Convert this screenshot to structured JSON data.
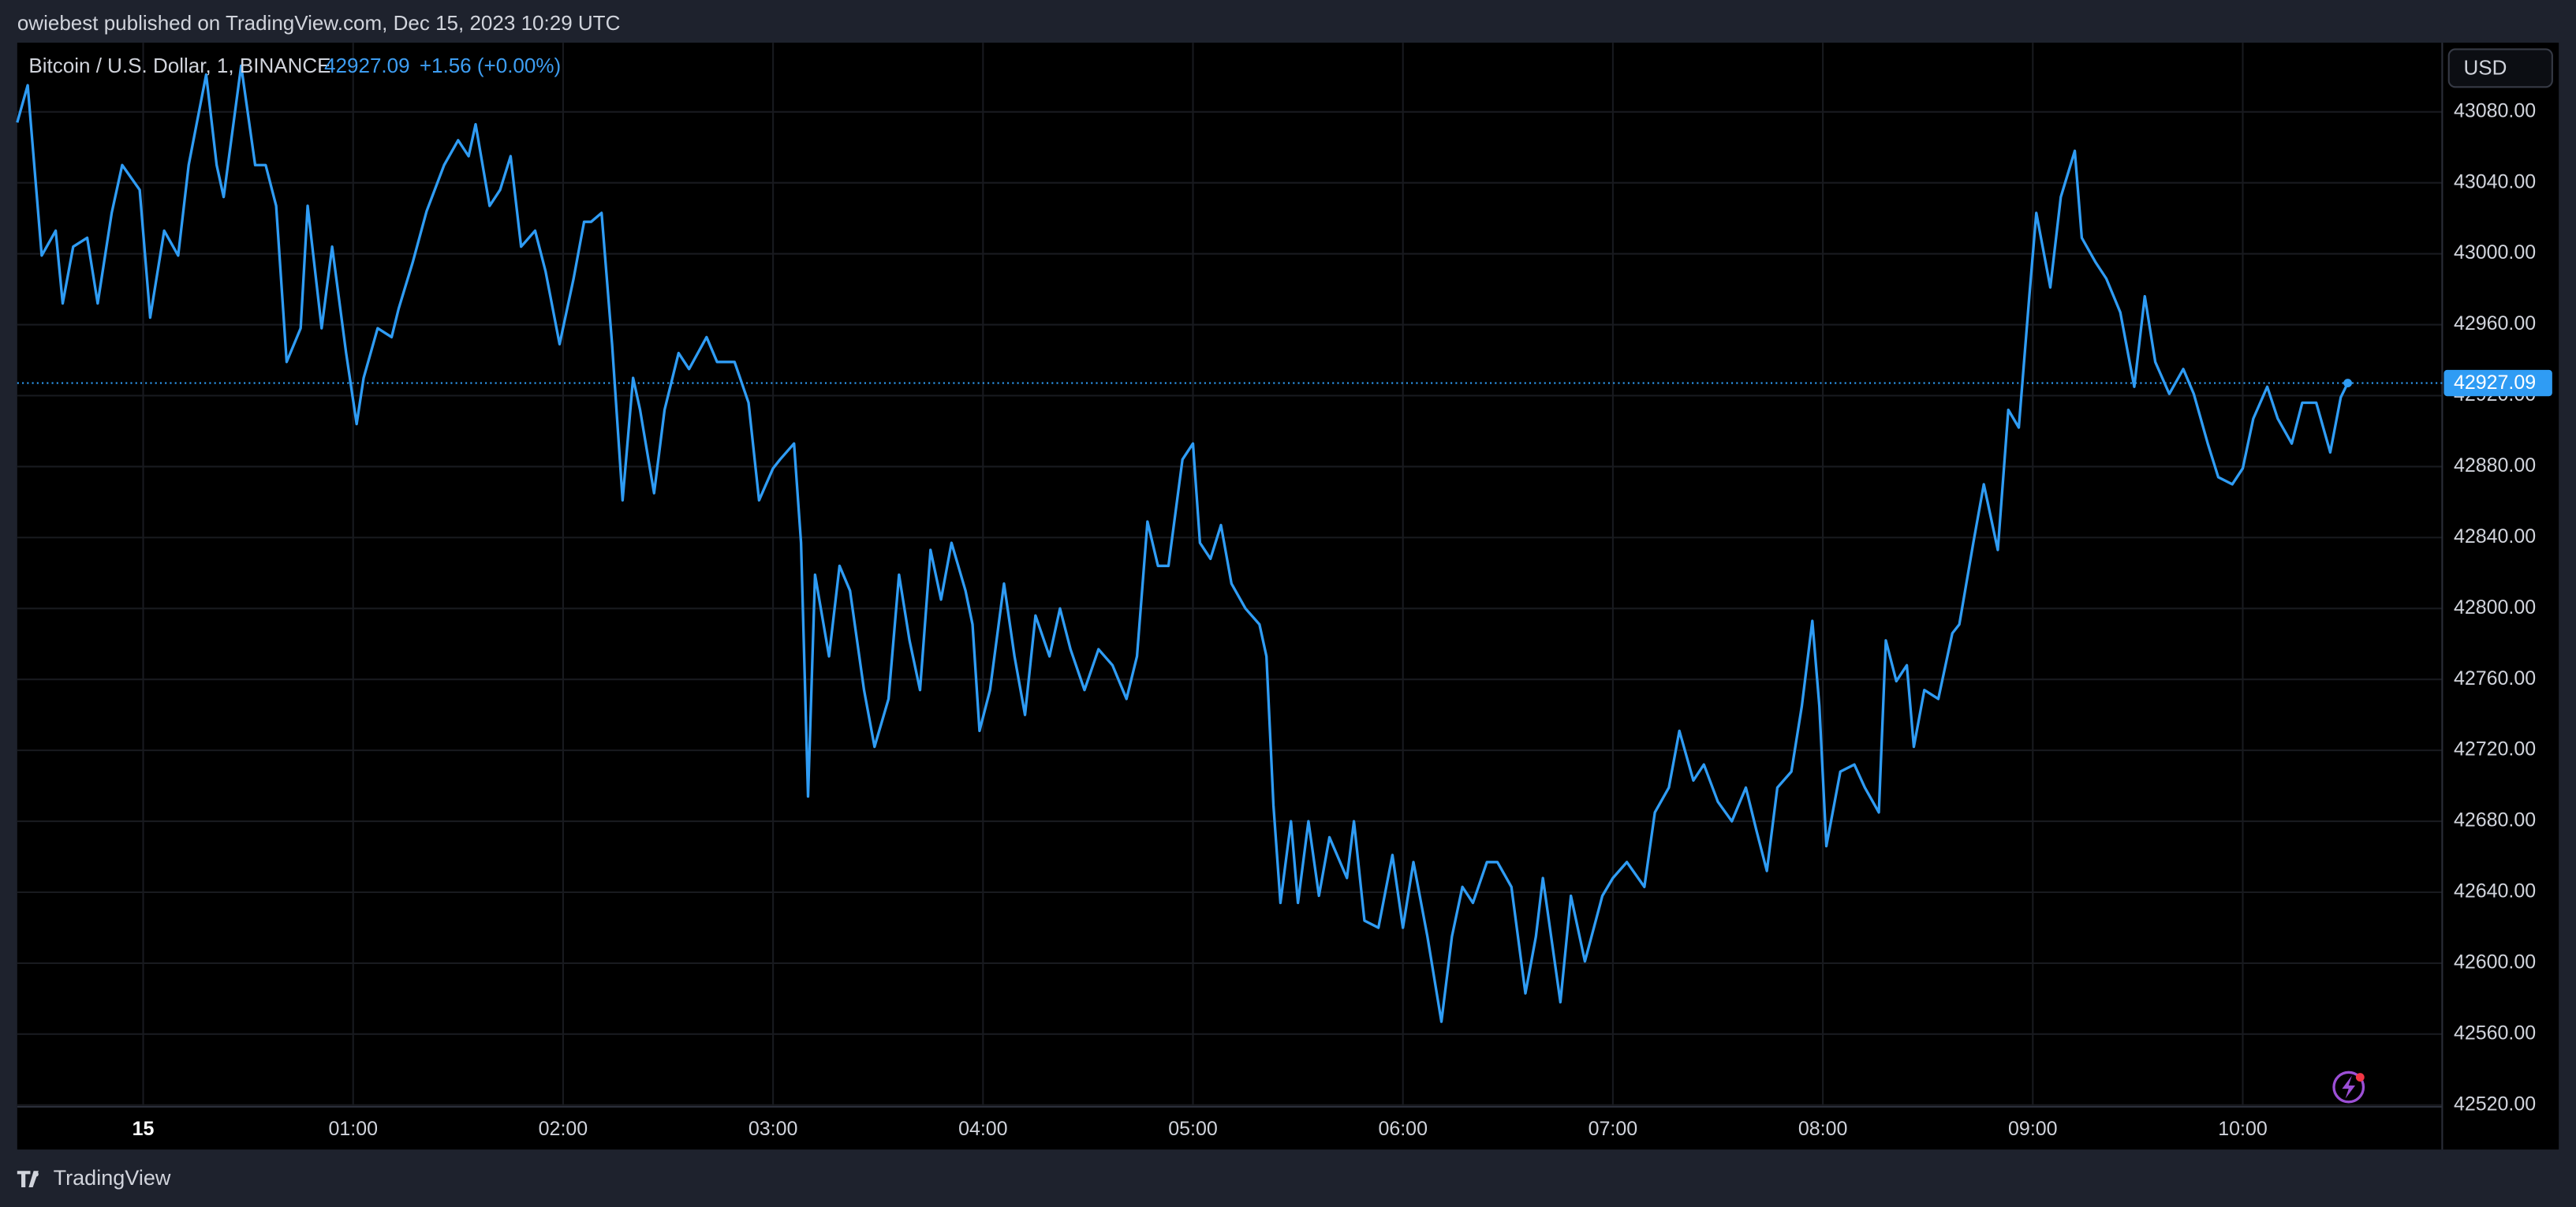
{
  "header": "owiebest published on TradingView.com, Dec 15, 2023 10:29 UTC",
  "footer": "TradingView",
  "chart_data": {
    "type": "line",
    "title": "Bitcoin / U.S. Dollar, 1, BINANCE",
    "change": "+1.56 (+0.00%)",
    "currency": "USD",
    "color": "#2f9cf4",
    "grid": true,
    "xlim": [
      -36,
      657
    ],
    "xticks": [
      {
        "value": 0,
        "label": "15"
      },
      {
        "value": 60,
        "label": "01:00"
      },
      {
        "value": 120,
        "label": "02:00"
      },
      {
        "value": 180,
        "label": "03:00"
      },
      {
        "value": 240,
        "label": "04:00"
      },
      {
        "value": 300,
        "label": "05:00"
      },
      {
        "value": 360,
        "label": "06:00"
      },
      {
        "value": 420,
        "label": "07:00"
      },
      {
        "value": 480,
        "label": "08:00"
      },
      {
        "value": 540,
        "label": "09:00"
      },
      {
        "value": 600,
        "label": "10:00"
      }
    ],
    "ylim": [
      42519,
      43119
    ],
    "yticks": [
      {
        "value": 42520,
        "label": "42520.00"
      },
      {
        "value": 42560,
        "label": "42560.00"
      },
      {
        "value": 42600,
        "label": "42600.00"
      },
      {
        "value": 42640,
        "label": "42640.00"
      },
      {
        "value": 42680,
        "label": "42680.00"
      },
      {
        "value": 42720,
        "label": "42720.00"
      },
      {
        "value": 42760,
        "label": "42760.00"
      },
      {
        "value": 42800,
        "label": "42800.00"
      },
      {
        "value": 42840,
        "label": "42840.00"
      },
      {
        "value": 42880,
        "label": "42880.00"
      },
      {
        "value": 42920,
        "label": "42920.00"
      },
      {
        "value": 42960,
        "label": "42960.00"
      },
      {
        "value": 43000,
        "label": "43000.00"
      },
      {
        "value": 43040,
        "label": "43040.00"
      },
      {
        "value": 43080,
        "label": "43080.00"
      }
    ],
    "x": [
      -36,
      -33,
      -29,
      -25,
      -23,
      -20,
      -16,
      -13,
      -9,
      -6,
      -1,
      2,
      6,
      10,
      13,
      18,
      21,
      23,
      28,
      32,
      35,
      38,
      41,
      45,
      47,
      51,
      54,
      58,
      61,
      63,
      67,
      71,
      73,
      77,
      81,
      86,
      90,
      93,
      95,
      99,
      102,
      105,
      108,
      112,
      115,
      119,
      123,
      126,
      128,
      131,
      134,
      137,
      140,
      142,
      146,
      149,
      153,
      156,
      161,
      164,
      169,
      173,
      176,
      180,
      182,
      186,
      188,
      190,
      192,
      196,
      199,
      202,
      206,
      209,
      213,
      216,
      219,
      222,
      225,
      228,
      231,
      235,
      237,
      239,
      242,
      246,
      249,
      252,
      255,
      259,
      262,
      265,
      269,
      273,
      277,
      281,
      284,
      287,
      290,
      293,
      297,
      300,
      302,
      305,
      308,
      311,
      315,
      319,
      321,
      323,
      325,
      328,
      330,
      333,
      336,
      339,
      344,
      346,
      349,
      353,
      357,
      360,
      363,
      367,
      371,
      374,
      377,
      380,
      384,
      387,
      391,
      395,
      398,
      400,
      405,
      408,
      412,
      417,
      420,
      424,
      429,
      432,
      436,
      439,
      443,
      446,
      450,
      454,
      458,
      461,
      464,
      467,
      471,
      474,
      477,
      479,
      481,
      485,
      489,
      492,
      496,
      498,
      501,
      504,
      506,
      509,
      513,
      517,
      519,
      523,
      526,
      530,
      533,
      536,
      539,
      541,
      545,
      548,
      552,
      554,
      558,
      561,
      565,
      569,
      572,
      575,
      579,
      583,
      586,
      590,
      593,
      597,
      600,
      603,
      607,
      610,
      614,
      617,
      621,
      625,
      628,
      630
    ],
    "values": [
      43074,
      43095,
      42999,
      43013,
      42972,
      43004,
      43009,
      42972,
      43023,
      43050,
      43036,
      42964,
      43013,
      42999,
      43050,
      43101,
      43050,
      43032,
      43106,
      43050,
      43050,
      43027,
      42939,
      42958,
      43027,
      42958,
      43004,
      42944,
      42904,
      42930,
      42958,
      42953,
      42969,
      42995,
      43024,
      43050,
      43064,
      43055,
      43073,
      43027,
      43036,
      43055,
      43004,
      43013,
      42990,
      42949,
      42986,
      43018,
      43018,
      43023,
      42949,
      42861,
      42930,
      42912,
      42865,
      42912,
      42944,
      42935,
      42953,
      42939,
      42939,
      42916,
      42861,
      42879,
      42884,
      42893,
      42837,
      42694,
      42819,
      42773,
      42824,
      42810,
      42754,
      42722,
      42749,
      42819,
      42782,
      42754,
      42833,
      42805,
      42837,
      42810,
      42791,
      42731,
      42754,
      42814,
      42773,
      42740,
      42796,
      42773,
      42800,
      42777,
      42754,
      42777,
      42768,
      42749,
      42773,
      42849,
      42824,
      42824,
      42884,
      42893,
      42837,
      42828,
      42847,
      42814,
      42800,
      42791,
      42773,
      42689,
      42634,
      42680,
      42634,
      42680,
      42638,
      42671,
      42648,
      42680,
      42624,
      42620,
      42661,
      42620,
      42657,
      42615,
      42567,
      42615,
      42643,
      42634,
      42657,
      42657,
      42643,
      42583,
      42615,
      42648,
      42578,
      42638,
      42601,
      42638,
      42648,
      42657,
      42643,
      42685,
      42699,
      42731,
      42703,
      42712,
      42691,
      42680,
      42699,
      42675,
      42652,
      42699,
      42708,
      42745,
      42793,
      42745,
      42666,
      42708,
      42712,
      42699,
      42685,
      42782,
      42759,
      42768,
      42722,
      42754,
      42749,
      42786,
      42791,
      42837,
      42870,
      42833,
      42912,
      42902,
      42976,
      43023,
      42981,
      43032,
      43058,
      43009,
      42995,
      42986,
      42967,
      42925,
      42976,
      42939,
      42921,
      42935,
      42921,
      42893,
      42874,
      42870,
      42879,
      42907,
      42925,
      42907,
      42893,
      42916,
      42916,
      42888,
      42919,
      42927.09
    ]
  }
}
